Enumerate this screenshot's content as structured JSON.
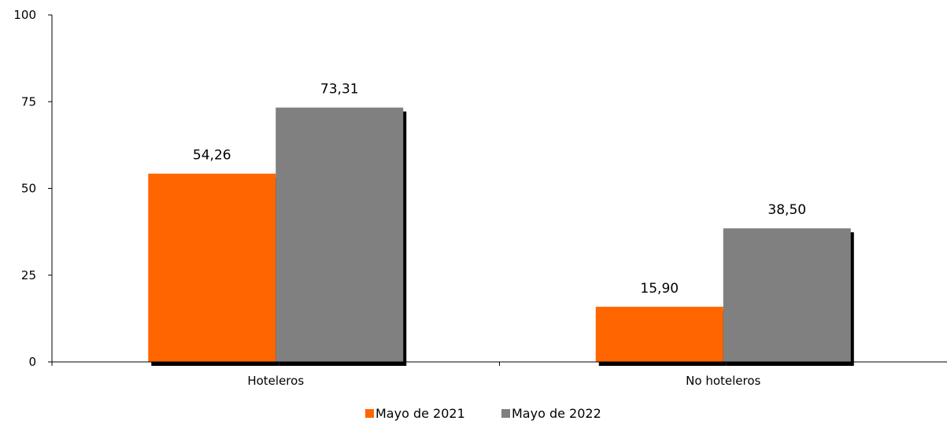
{
  "chart_data": {
    "type": "bar",
    "categories": [
      "Hoteleros",
      "No hoteleros"
    ],
    "series": [
      {
        "name": "Mayo de 2021",
        "values": [
          54.26,
          15.9
        ],
        "labels": [
          "54,26",
          "15,90"
        ],
        "color": "#ff6600"
      },
      {
        "name": "Mayo de 2022",
        "values": [
          73.31,
          38.5
        ],
        "labels": [
          "73,31",
          "38,50"
        ],
        "color": "#808080"
      }
    ],
    "ylim": [
      0,
      100
    ],
    "yticks": [
      0,
      25,
      50,
      75,
      100
    ],
    "ytick_labels": [
      "0",
      "25",
      "50",
      "75",
      "100"
    ],
    "title": "",
    "xlabel": "",
    "ylabel": "",
    "grid": false,
    "legend_position": "bottom"
  }
}
